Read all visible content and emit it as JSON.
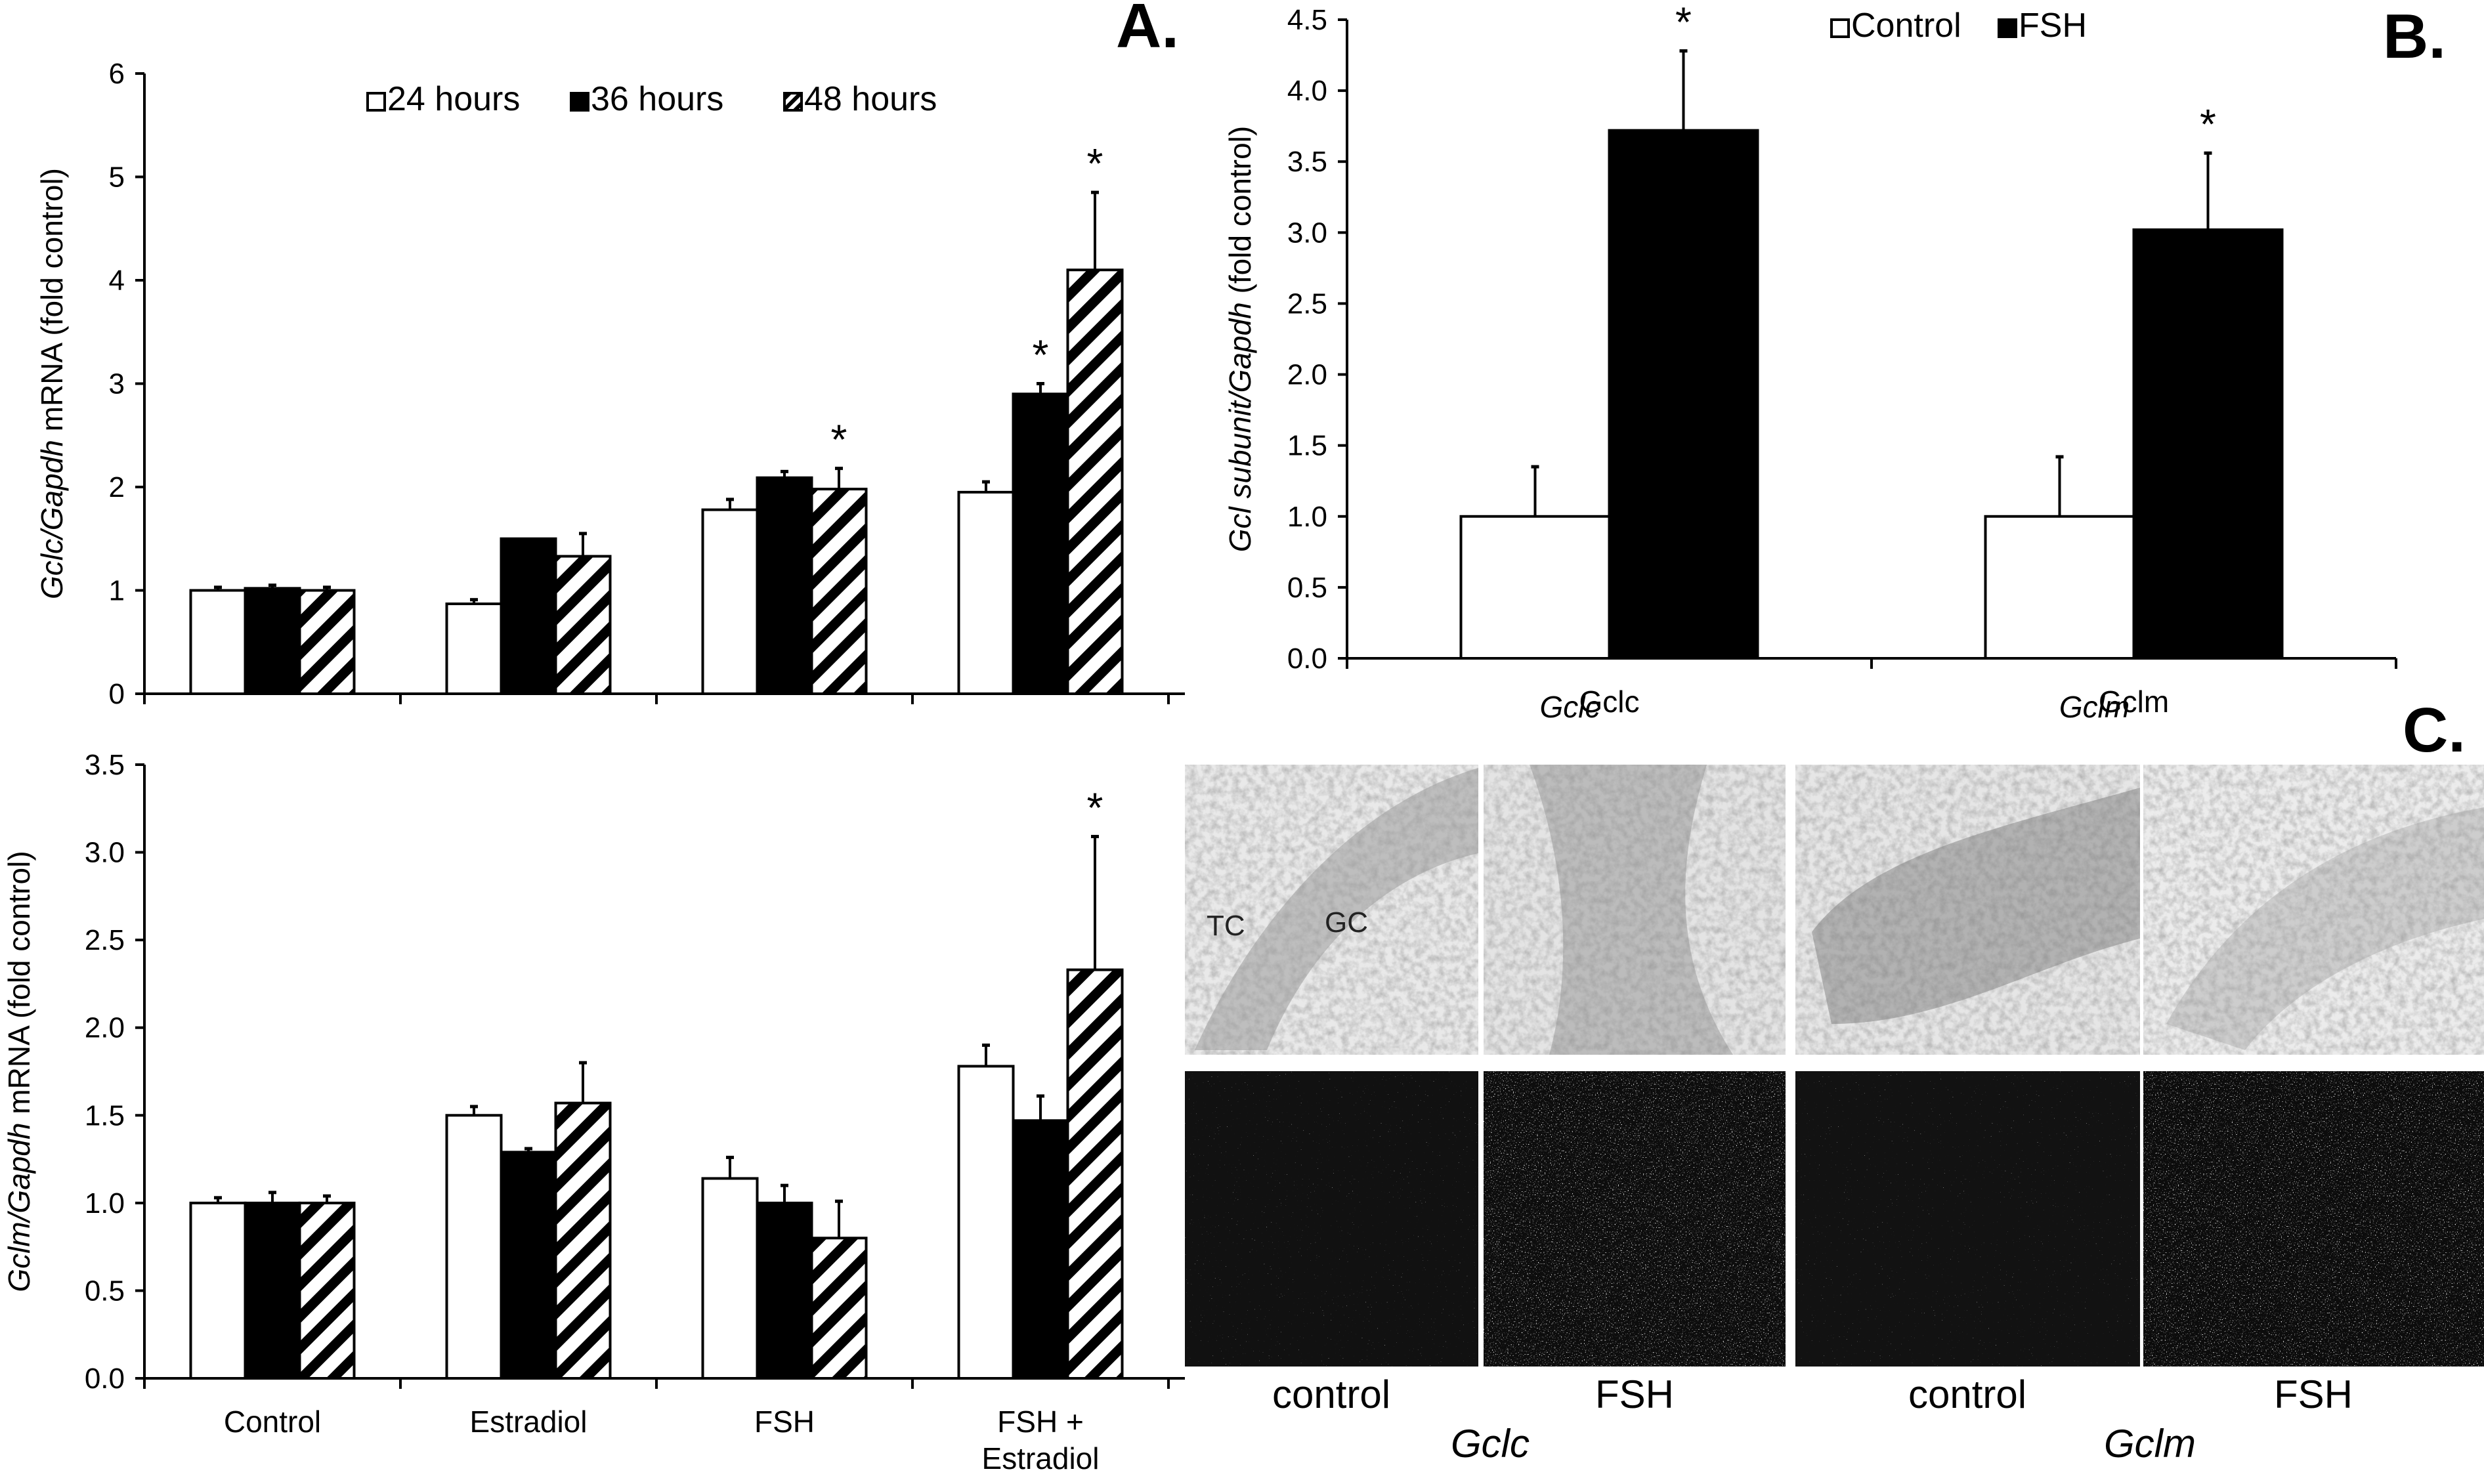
{
  "panels": {
    "a_letter": "A.",
    "b_letter": "B.",
    "c_letter": "C."
  },
  "chart_data": [
    {
      "id": "A",
      "type": "bar",
      "ylabel_italic": "Gclc/Gapdh",
      "ylabel_rest": " mRNA (fold control)",
      "ylim": [
        0,
        6
      ],
      "yticks": [
        0,
        1,
        2,
        3,
        4,
        5,
        6
      ],
      "ytick_labels": [
        "0",
        "1",
        "2",
        "3",
        "4",
        "5",
        "6"
      ],
      "categories": [
        "Control",
        "Estradiol",
        "FSH",
        "FSH + Estradiol"
      ],
      "category_lines": [
        [
          "Control"
        ],
        [
          "Estradiol"
        ],
        [
          "FSH"
        ],
        [
          "FSH +",
          "Estradiol"
        ]
      ],
      "show_category_labels": false,
      "legend": "top",
      "series": [
        {
          "name": "24 hours",
          "fill": "white",
          "values": [
            1.0,
            0.87,
            1.78,
            1.95
          ],
          "errors": [
            0.03,
            0.04,
            0.1,
            0.1
          ],
          "stars": [
            false,
            false,
            false,
            false
          ]
        },
        {
          "name": "36 hours",
          "fill": "black",
          "values": [
            1.02,
            1.5,
            2.09,
            2.9
          ],
          "errors": [
            0.03,
            0.0,
            0.06,
            0.1
          ],
          "stars": [
            false,
            false,
            false,
            true
          ]
        },
        {
          "name": "48 hours",
          "fill": "hatch",
          "values": [
            1.0,
            1.33,
            1.98,
            4.1
          ],
          "errors": [
            0.03,
            0.22,
            0.2,
            0.75
          ],
          "stars": [
            false,
            false,
            true,
            true
          ]
        }
      ]
    },
    {
      "id": "A2",
      "type": "bar",
      "ylabel_italic": "Gclm/Gapdh",
      "ylabel_rest": " mRNA (fold control)",
      "ylim": [
        0,
        3.5
      ],
      "yticks": [
        0,
        0.5,
        1,
        1.5,
        2,
        2.5,
        3,
        3.5
      ],
      "ytick_labels": [
        "0.0",
        "0.5",
        "1.0",
        "1.5",
        "2.0",
        "2.5",
        "3.0",
        "3.5"
      ],
      "categories": [
        "Control",
        "Estradiol",
        "FSH",
        "FSH + Estradiol"
      ],
      "category_lines": [
        [
          "Control"
        ],
        [
          "Estradiol"
        ],
        [
          "FSH"
        ],
        [
          "FSH +",
          "Estradiol"
        ]
      ],
      "show_category_labels": true,
      "series": [
        {
          "name": "24 hours",
          "fill": "white",
          "values": [
            1.0,
            1.5,
            1.14,
            1.78
          ],
          "errors": [
            0.03,
            0.05,
            0.12,
            0.12
          ],
          "stars": [
            false,
            false,
            false,
            false
          ]
        },
        {
          "name": "36 hours",
          "fill": "black",
          "values": [
            1.0,
            1.29,
            1.0,
            1.47
          ],
          "errors": [
            0.06,
            0.02,
            0.1,
            0.14
          ],
          "stars": [
            false,
            false,
            false,
            false
          ]
        },
        {
          "name": "48 hours",
          "fill": "hatch",
          "values": [
            1.0,
            1.57,
            0.8,
            2.33
          ],
          "errors": [
            0.04,
            0.23,
            0.21,
            0.76
          ],
          "stars": [
            false,
            false,
            false,
            true
          ]
        }
      ]
    },
    {
      "id": "B",
      "type": "bar",
      "ylabel_italic": "Gcl subunit/Gapdh",
      "ylabel_rest": " (fold control)",
      "ylim": [
        0,
        4.5
      ],
      "yticks": [
        0,
        0.5,
        1,
        1.5,
        2,
        2.5,
        3,
        3.5,
        4,
        4.5
      ],
      "ytick_labels": [
        "0.0",
        "0.5",
        "1.0",
        "1.5",
        "2.0",
        "2.5",
        "3.0",
        "3.5",
        "4.0",
        "4.5"
      ],
      "categories": [
        "Gclc",
        "Gclm"
      ],
      "legend": "top",
      "series": [
        {
          "name": "Control",
          "fill": "white",
          "values": [
            1.0,
            1.0
          ],
          "errors": [
            0.35,
            0.42
          ],
          "stars": [
            false,
            false
          ]
        },
        {
          "name": "FSH",
          "fill": "black",
          "values": [
            3.72,
            3.02
          ],
          "errors": [
            0.56,
            0.54
          ],
          "stars": [
            true,
            true
          ]
        }
      ]
    }
  ],
  "micrographs": {
    "top_annotations": {
      "tc": "TC",
      "gc": "GC"
    },
    "column_labels": [
      "control",
      "FSH",
      "control",
      "FSH"
    ],
    "gene_labels": [
      "Gclc",
      "Gclm"
    ]
  }
}
